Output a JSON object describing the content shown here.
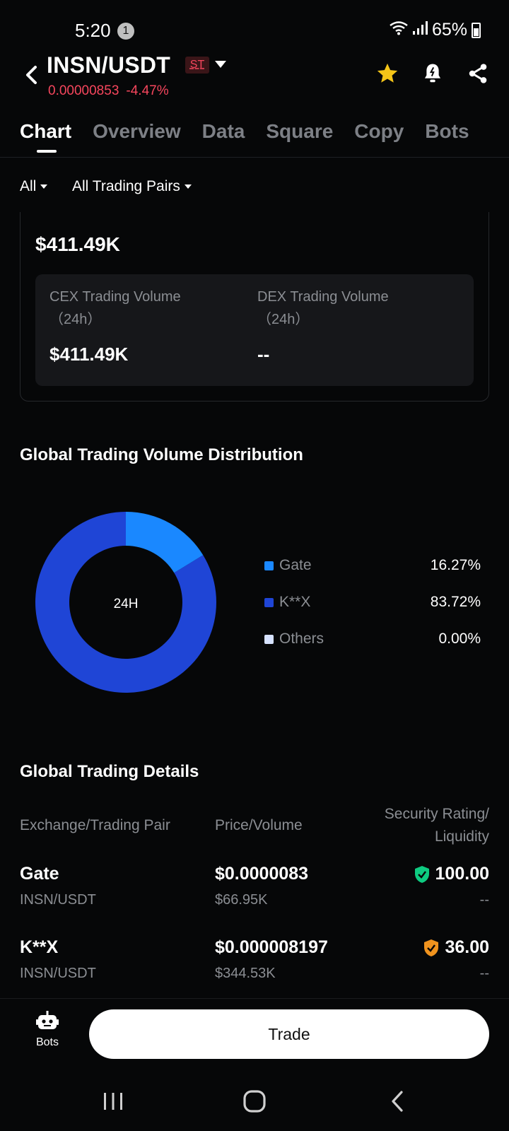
{
  "status_bar": {
    "time": "5:20",
    "notification_count": "1",
    "battery": "65%"
  },
  "header": {
    "pair": "INSN/USDT",
    "badge": "ST",
    "price": "0.00000853",
    "change": "-4.47%",
    "colors": {
      "negative": "#f6465d",
      "star": "#f5c518"
    }
  },
  "tabs": [
    {
      "label": "Chart",
      "active": true
    },
    {
      "label": "Overview",
      "active": false
    },
    {
      "label": "Data",
      "active": false
    },
    {
      "label": "Square",
      "active": false
    },
    {
      "label": "Copy",
      "active": false
    },
    {
      "label": "Bots",
      "active": false
    }
  ],
  "filters": {
    "scope": "All",
    "pairs": "All Trading Pairs"
  },
  "volume": {
    "total": "$411.49K",
    "cex": {
      "label": "CEX Trading Volume",
      "period": "（24h）",
      "value": "$411.49K"
    },
    "dex": {
      "label": "DEX Trading Volume",
      "period": "（24h）",
      "value": "--"
    }
  },
  "distribution": {
    "title": "Global Trading Volume Distribution",
    "center_label": "24H",
    "legend": [
      {
        "name": "Gate",
        "value": "16.27%",
        "color": "#1a88ff"
      },
      {
        "name": "K**X",
        "value": "83.72%",
        "color": "#1f45d6"
      },
      {
        "name": "Others",
        "value": "0.00%",
        "color": "#d6e2ff"
      }
    ]
  },
  "chart_data": {
    "type": "pie",
    "categories": [
      "Gate",
      "K**X",
      "Others"
    ],
    "values": [
      16.27,
      83.72,
      0.0
    ],
    "title": "Global Trading Volume Distribution",
    "center_label": "24H"
  },
  "details": {
    "title": "Global Trading Details",
    "columns": {
      "exchange": "Exchange/Trading Pair",
      "price": "Price/Volume",
      "rating_line1": "Security Rating/",
      "rating_line2": "Liquidity"
    },
    "rows": [
      {
        "exchange": "Gate",
        "pair": "INSN/USDT",
        "price": "$0.0000083",
        "volume": "$66.95K",
        "rating": "100.00",
        "liquidity": "--",
        "shield_color": "#0ecb81"
      },
      {
        "exchange": "K**X",
        "pair": "INSN/USDT",
        "price": "$0.000008197",
        "volume": "$344.53K",
        "rating": "36.00",
        "liquidity": "--",
        "shield_color": "#f0931e"
      }
    ]
  },
  "bottom": {
    "bots_label": "Bots",
    "trade_label": "Trade"
  }
}
